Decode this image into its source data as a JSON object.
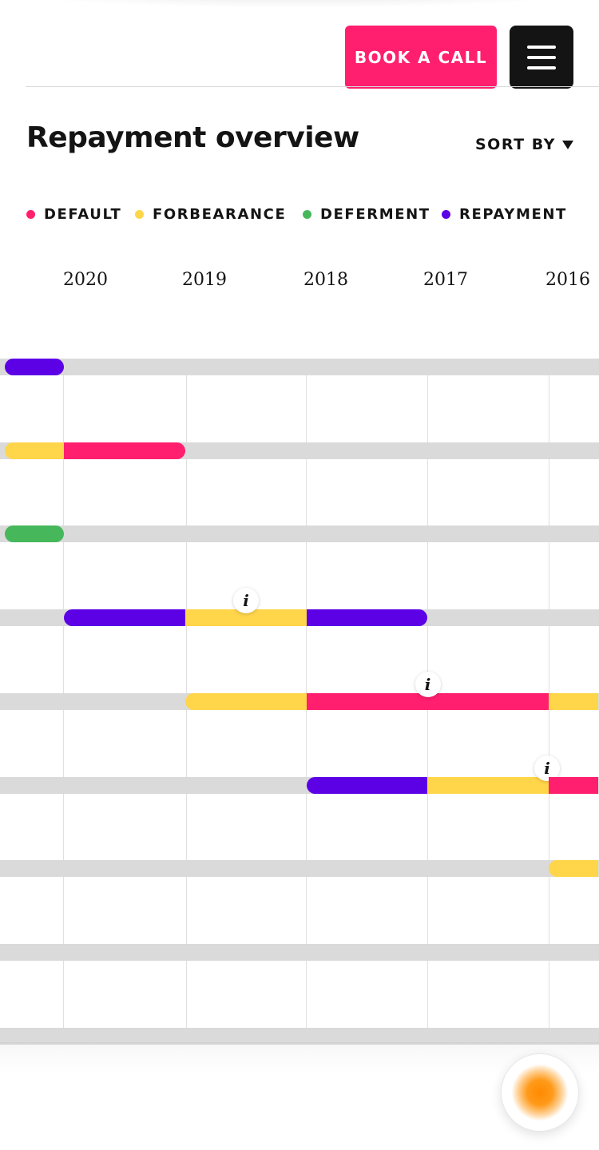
{
  "header": {
    "book_call_label": "BOOK A CALL",
    "menu_icon": "hamburger-menu-icon"
  },
  "overview": {
    "title": "Repayment overview",
    "sort_label": "SORT BY",
    "sort_icon": "caret-down-icon"
  },
  "legend": [
    {
      "label": "DEFAULT",
      "color": "#ff1f6e"
    },
    {
      "label": "FORBEARANCE",
      "color": "#ffd54a"
    },
    {
      "label": "DEFERMENT",
      "color": "#46b85b"
    },
    {
      "label": "REPAYMENT",
      "color": "#5c00e6"
    }
  ],
  "timeline": {
    "years": [
      "2020",
      "2019",
      "2018",
      "2017",
      "2016"
    ],
    "track_color": "#dadada",
    "info_label": "i",
    "rows": [
      {
        "segments": [
          {
            "start": "2020.49",
            "end": "2020.0",
            "status": "REPAYMENT"
          }
        ]
      },
      {
        "segments": [
          {
            "start": "2020.49",
            "end": "2020.0",
            "status": "FORBEARANCE"
          },
          {
            "start": "2020.0",
            "end": "2019.0",
            "status": "DEFAULT"
          }
        ]
      },
      {
        "segments": [
          {
            "start": "2020.49",
            "end": "2020.0",
            "status": "DEFERMENT"
          }
        ]
      },
      {
        "segments": [
          {
            "start": "2020.0",
            "end": "2019.0",
            "status": "REPAYMENT"
          },
          {
            "start": "2019.0",
            "end": "2018.0",
            "status": "FORBEARANCE",
            "info": true
          },
          {
            "start": "2018.0",
            "end": "2017.0",
            "status": "REPAYMENT"
          }
        ]
      },
      {
        "segments": [
          {
            "start": "2019.0",
            "end": "2018.0",
            "status": "FORBEARANCE"
          },
          {
            "start": "2018.0",
            "end": "2016.0",
            "status": "DEFAULT",
            "info": true
          },
          {
            "start": "2016.0",
            "end": "2015.59",
            "status": "FORBEARANCE"
          }
        ]
      },
      {
        "segments": [
          {
            "start": "2018.0",
            "end": "2017.0",
            "status": "REPAYMENT"
          },
          {
            "start": "2017.0",
            "end": "2016.0",
            "status": "FORBEARANCE",
            "info": true
          },
          {
            "start": "2016.0",
            "end": "2015.59",
            "status": "DEFAULT"
          }
        ]
      },
      {
        "segments": [
          {
            "start": "2016.0",
            "end": "2015.59",
            "status": "FORBEARANCE"
          }
        ]
      },
      {
        "segments": []
      },
      {
        "segments": []
      }
    ]
  },
  "chat": {
    "icon": "assistant-orb-icon"
  }
}
